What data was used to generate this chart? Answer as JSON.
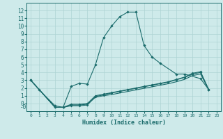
{
  "xlabel": "Humidex (Indice chaleur)",
  "bg_color": "#ceeaea",
  "grid_color": "#aed4d4",
  "line_color": "#1a6b6b",
  "xlim": [
    -0.5,
    23.5
  ],
  "ylim": [
    -1.0,
    13.0
  ],
  "xticks": [
    0,
    1,
    2,
    3,
    4,
    5,
    6,
    7,
    8,
    9,
    10,
    11,
    12,
    13,
    14,
    15,
    16,
    17,
    18,
    19,
    20,
    21,
    22,
    23
  ],
  "yticks": [
    0,
    1,
    2,
    3,
    4,
    5,
    6,
    7,
    8,
    9,
    10,
    11,
    12
  ],
  "series0_x": [
    0,
    1,
    3,
    4,
    5,
    6,
    7,
    8,
    9,
    10,
    11,
    12,
    13,
    14,
    15,
    16,
    18,
    19,
    21,
    22
  ],
  "series0_y": [
    3.0,
    1.8,
    -0.3,
    -0.5,
    2.2,
    2.6,
    2.5,
    5.0,
    8.5,
    10.0,
    11.2,
    11.8,
    11.8,
    7.5,
    6.0,
    5.2,
    3.8,
    3.8,
    3.2,
    1.8
  ],
  "series1_x": [
    0,
    3,
    4,
    5,
    6,
    7,
    8,
    9,
    10,
    11,
    12,
    13,
    14,
    15,
    16,
    17,
    18,
    19,
    20,
    21,
    22
  ],
  "series1_y": [
    3.0,
    -0.5,
    -0.5,
    -0.3,
    -0.3,
    -0.2,
    0.9,
    1.1,
    1.35,
    1.55,
    1.75,
    1.95,
    2.15,
    2.35,
    2.55,
    2.75,
    3.05,
    3.35,
    3.8,
    4.0,
    1.8
  ],
  "series2_x": [
    0,
    3,
    4,
    5,
    6,
    7,
    8,
    9,
    10,
    11,
    12,
    13,
    14,
    15,
    16,
    17,
    18,
    19,
    20,
    21,
    22
  ],
  "series2_y": [
    3.0,
    -0.5,
    -0.5,
    -0.1,
    -0.1,
    0.0,
    1.0,
    1.2,
    1.4,
    1.6,
    1.8,
    2.0,
    2.2,
    2.4,
    2.6,
    2.8,
    3.1,
    3.4,
    3.9,
    4.1,
    1.8
  ],
  "series3_x": [
    0,
    3,
    4,
    5,
    6,
    7,
    8,
    9,
    10,
    11,
    12,
    13,
    14,
    15,
    16,
    17,
    18,
    19,
    20,
    21,
    22
  ],
  "series3_y": [
    3.0,
    -0.5,
    -0.5,
    -0.2,
    -0.2,
    -0.1,
    0.8,
    1.0,
    1.15,
    1.35,
    1.55,
    1.75,
    1.95,
    2.15,
    2.35,
    2.55,
    2.8,
    3.1,
    3.6,
    3.8,
    1.8
  ]
}
